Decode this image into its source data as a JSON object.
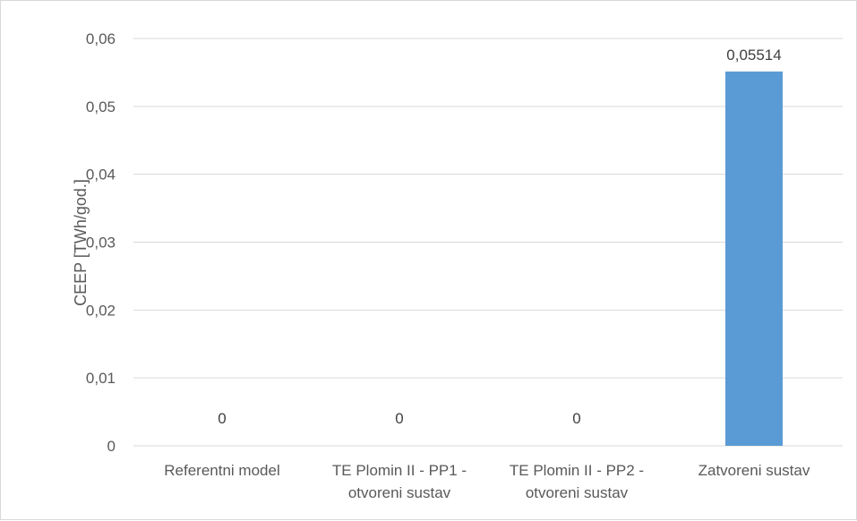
{
  "chart_data": {
    "type": "bar",
    "title": "",
    "xlabel": "",
    "ylabel": "CEEP [TWh/god.]",
    "categories": [
      [
        "Referentni model"
      ],
      [
        "TE Plomin II - PP1 -",
        "otvoreni sustav"
      ],
      [
        "TE Plomin II - PP2 -",
        "otvoreni sustav"
      ],
      [
        "Zatvoreni sustav"
      ]
    ],
    "values": [
      0,
      0,
      0,
      0.05514
    ],
    "data_labels": [
      "0",
      "0",
      "0",
      "0,05514"
    ],
    "ylim": [
      0,
      0.06
    ],
    "yticks": [
      0,
      0.01,
      0.02,
      0.03,
      0.04,
      0.05,
      0.06
    ],
    "ytick_labels": [
      "0",
      "0,01",
      "0,02",
      "0,03",
      "0,04",
      "0,05",
      "0,06"
    ],
    "grid": true,
    "legend": "none",
    "colors": {
      "bar": "#5b9bd5",
      "grid": "#d9d9d9",
      "text": "#595959"
    }
  }
}
